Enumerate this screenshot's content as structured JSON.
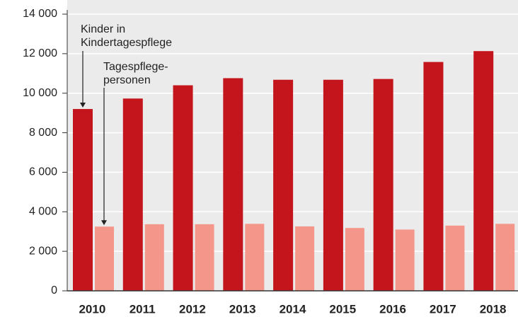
{
  "chart_data": {
    "type": "bar",
    "categories": [
      "2010",
      "2011",
      "2012",
      "2013",
      "2014",
      "2015",
      "2016",
      "2017",
      "2018"
    ],
    "series": [
      {
        "name": "Kinder in Kindertagespflege",
        "color": "#c4151c",
        "values": [
          9200,
          9730,
          10400,
          10760,
          10680,
          10680,
          10720,
          11580,
          12130
        ]
      },
      {
        "name": "Tagespflege-personen",
        "color": "#f4968a",
        "values": [
          3250,
          3370,
          3370,
          3390,
          3260,
          3180,
          3100,
          3300,
          3390
        ]
      }
    ],
    "ylim": [
      0,
      14000
    ],
    "yticks": [
      {
        "value": 0,
        "label": "0"
      },
      {
        "value": 2000,
        "label": "2 000"
      },
      {
        "value": 4000,
        "label": "4 000"
      },
      {
        "value": 6000,
        "label": "6 000"
      },
      {
        "value": 8000,
        "label": "8 000"
      },
      {
        "value": 10000,
        "label": "10 000"
      },
      {
        "value": 12000,
        "label": "12 000"
      },
      {
        "value": 14000,
        "label": "14 000"
      }
    ],
    "grid": true
  }
}
